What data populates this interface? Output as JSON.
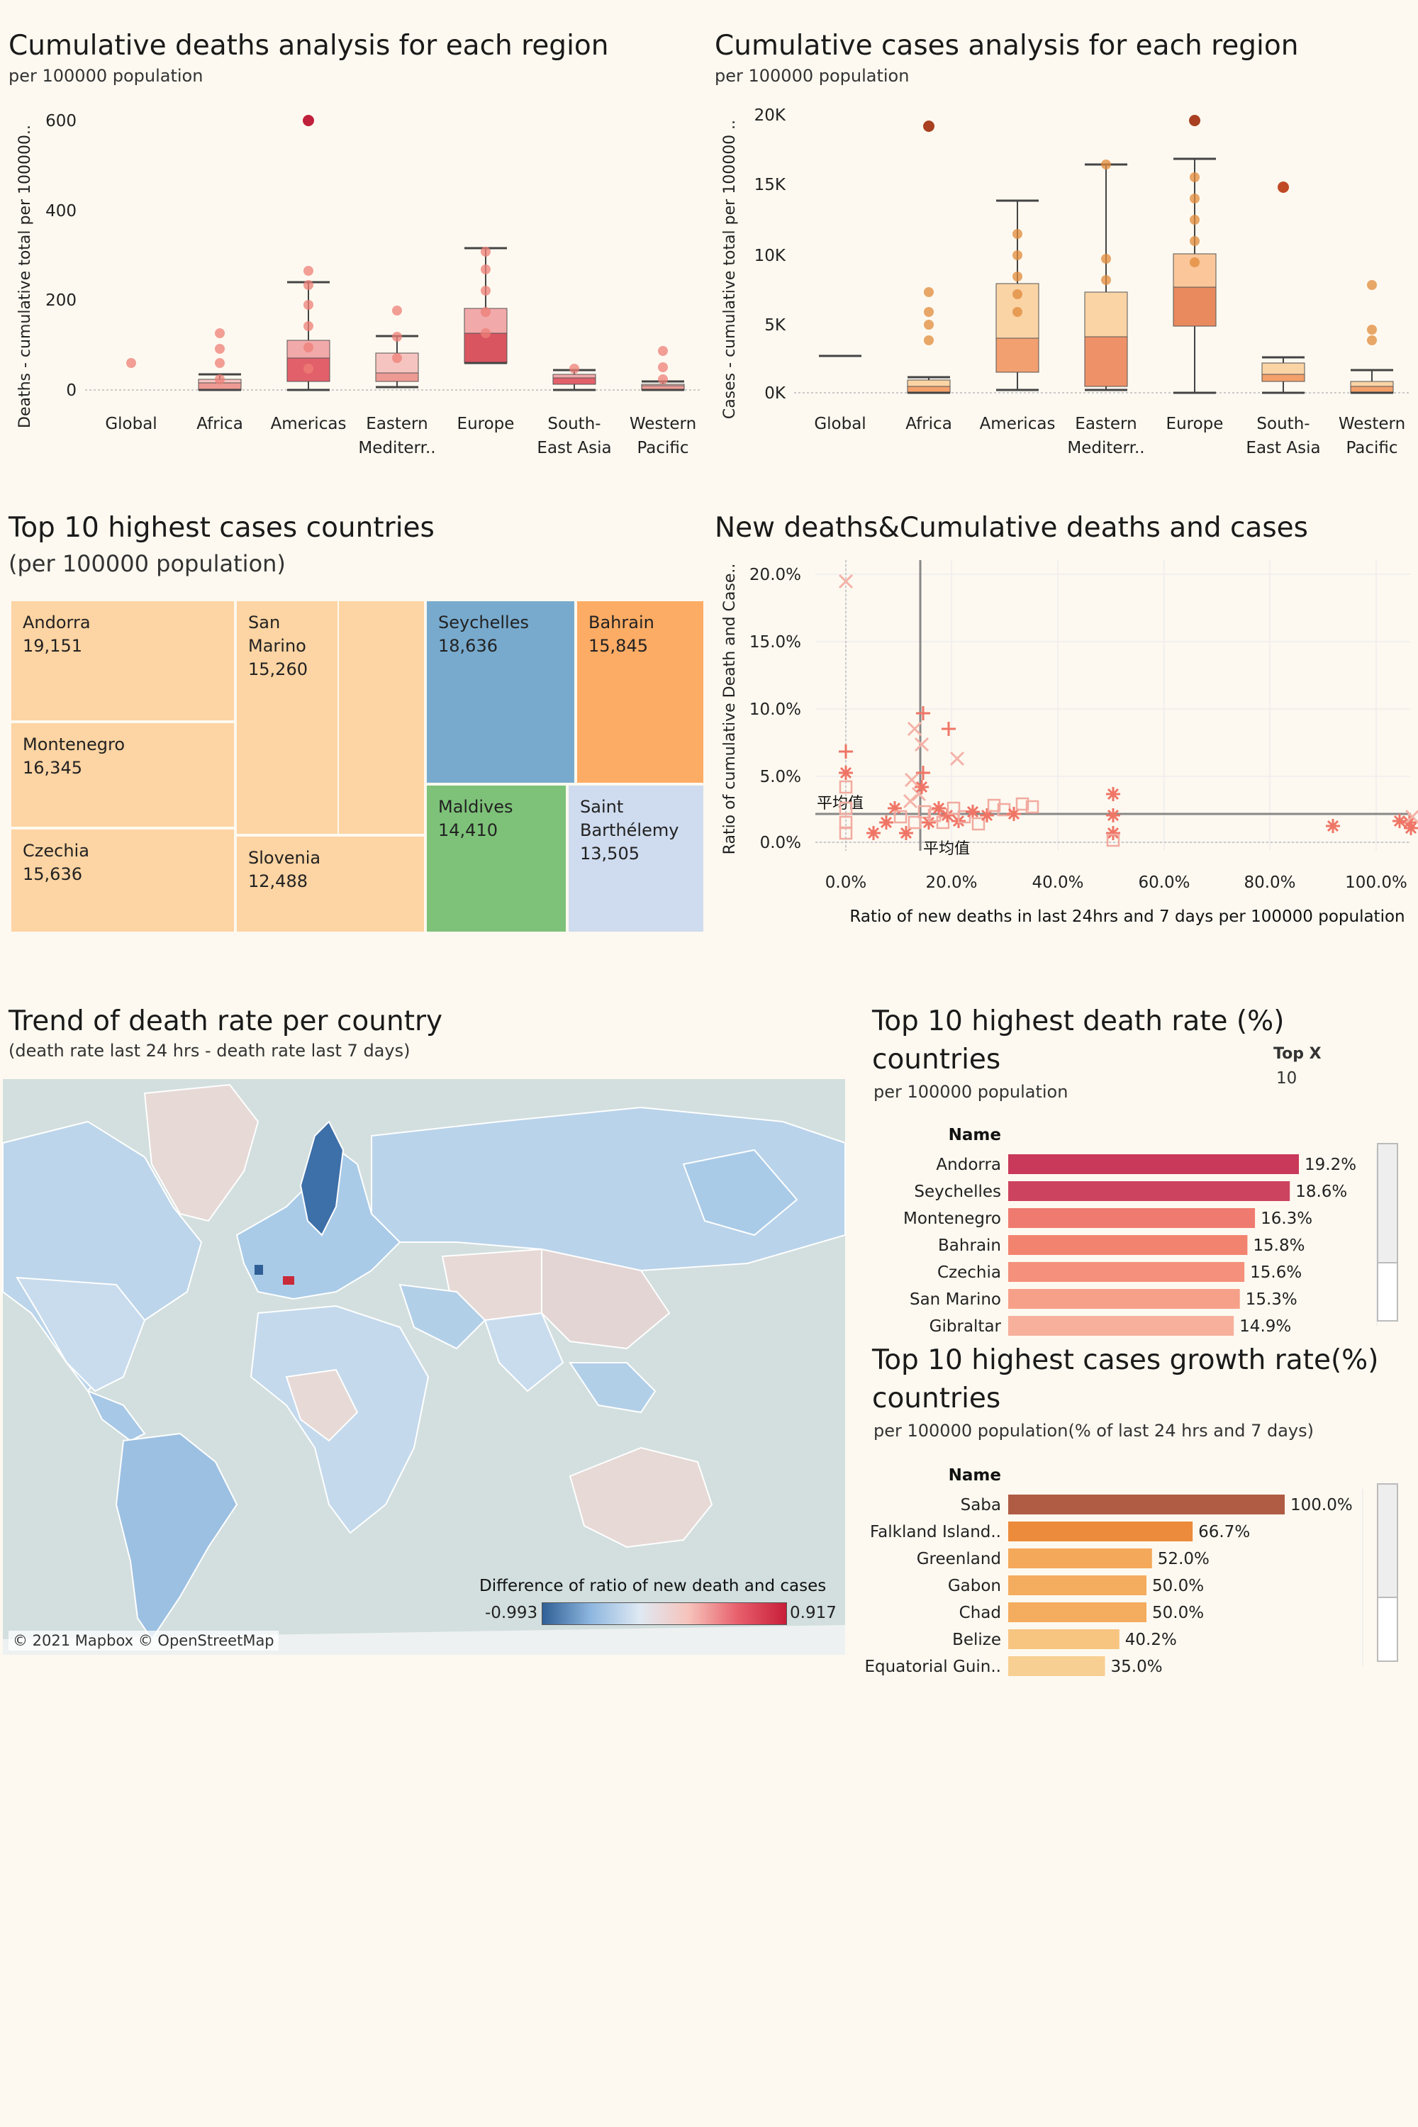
{
  "deaths_box": {
    "title": "Cumulative deaths analysis for each region",
    "subtitle": "per 100000 population",
    "ylabel": "Deaths - cumulative total per 100000..",
    "ticks": [
      "600",
      "400",
      "200",
      "0"
    ],
    "regions": [
      "Global",
      "Africa",
      "Americas",
      "Eastern|Mediterr..",
      "Europe",
      "South-|East Asia",
      "Western|Pacific"
    ]
  },
  "cases_box": {
    "title": "Cumulative cases analysis for each region",
    "subtitle": "per 100000 population",
    "ylabel": "Cases - cumulative total per 100000 ..",
    "ticks": [
      "20K",
      "15K",
      "10K",
      "5K",
      "0K"
    ],
    "regions": [
      "Global",
      "Africa",
      "Americas",
      "Eastern|Mediterr..",
      "Europe",
      "South-|East Asia",
      "Western|Pacific"
    ]
  },
  "treemap": {
    "title": "Top 10 highest cases countries",
    "subtitle": "(per 100000 population)",
    "cells": [
      {
        "name": "Andorra",
        "value": "19,151"
      },
      {
        "name": "San|Marino",
        "value": "15,260"
      },
      {
        "name": "Seychelles",
        "value": "18,636"
      },
      {
        "name": "Bahrain",
        "value": "15,845"
      },
      {
        "name": "Montenegro",
        "value": "16,345"
      },
      {
        "name": "Czechia",
        "value": "15,636"
      },
      {
        "name": "Slovenia",
        "value": "12,488"
      },
      {
        "name": "Maldives",
        "value": "14,410"
      },
      {
        "name": "Saint|Barthélemy",
        "value": "13,505"
      }
    ]
  },
  "scatter": {
    "title": "New deaths&Cumulative deaths and cases",
    "ylabel": "Ratio of cumulative Death and Case..",
    "xlabel": "Ratio of new deaths in last 24hrs and 7 days per 100000 population",
    "yticks": [
      "20.0%",
      "15.0%",
      "10.0%",
      "5.0%",
      "0.0%"
    ],
    "xticks": [
      "0.0%",
      "20.0%",
      "40.0%",
      "60.0%",
      "80.0%",
      "100.0%"
    ],
    "avg_label": "平均值"
  },
  "map": {
    "title": "Trend of death rate per country",
    "subtitle": "(death rate last 24 hrs - death rate last 7 days)",
    "legend_title": "Difference of ratio of new death and cases",
    "legend_min": "-0.993",
    "legend_max": "0.917",
    "credit": "© 2021 Mapbox © OpenStreetMap"
  },
  "death_rate_bars": {
    "title_line1": "Top 10 highest death rate (%)",
    "title_line2": "countries",
    "subtitle": "per 100000 population",
    "topx_label": "Top X",
    "topx_value": "10",
    "col_header": "Name"
  },
  "growth_bars": {
    "title_line1": "Top 10 highest cases growth rate(%)",
    "title_line2": "countries",
    "subtitle": "per 100000 population(% of last 24 hrs and 7 days)",
    "col_header": "Name"
  },
  "chart_data": [
    {
      "type": "bar",
      "categories": [
        "Andorra",
        "Seychelles",
        "Montenegro",
        "Bahrain",
        "Czechia",
        "San Marino",
        "Gibraltar"
      ],
      "values": [
        19.2,
        18.6,
        16.3,
        15.8,
        15.6,
        15.3,
        14.9
      ],
      "labels": [
        "19.2%",
        "18.6%",
        "16.3%",
        "15.8%",
        "15.6%",
        "15.3%",
        "14.9%"
      ]
    },
    {
      "type": "bar",
      "categories": [
        "Saba",
        "Falkland Island..",
        "Greenland",
        "Gabon",
        "Chad",
        "Belize",
        "Equatorial Guin.."
      ],
      "values": [
        100.0,
        66.7,
        52.0,
        50.0,
        50.0,
        40.2,
        35.0
      ],
      "labels": [
        "100.0%",
        "66.7%",
        "52.0%",
        "50.0%",
        "50.0%",
        "40.2%",
        "35.0%"
      ]
    }
  ]
}
